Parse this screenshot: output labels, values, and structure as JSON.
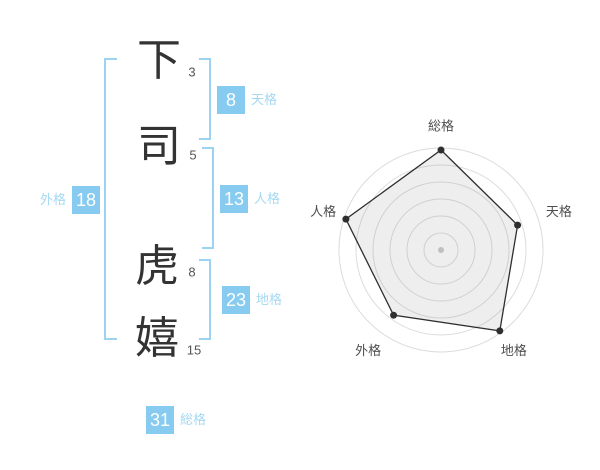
{
  "name": {
    "characters": [
      {
        "char": "下",
        "strokes": "3"
      },
      {
        "char": "司",
        "strokes": "5"
      },
      {
        "char": "虎",
        "strokes": "8"
      },
      {
        "char": "嬉",
        "strokes": "15"
      }
    ]
  },
  "grades": {
    "tenkaku": {
      "value": "8",
      "label": "天格"
    },
    "jinkaku": {
      "value": "13",
      "label": "人格"
    },
    "chikaku": {
      "value": "23",
      "label": "地格"
    },
    "gaikaku": {
      "value": "18",
      "label": "外格"
    },
    "soukaku": {
      "value": "31",
      "label": "総格"
    }
  },
  "colors": {
    "badge_blue": "#87cbf0",
    "label_blue": "#a5d8f2",
    "bracket_blue": "#9cd3f2",
    "char_dark": "#333333",
    "stroke_count_gray": "#555555",
    "radar_label": "#4e4e4e",
    "ring_gray": "#dcdcdc",
    "polygon_stroke": "#2f2f2f",
    "polygon_fill": "rgba(140,140,140,0.15)",
    "center_dot": "#c8c8c8"
  },
  "chart_data": {
    "type": "radar",
    "axes": [
      "総格",
      "天格",
      "地格",
      "外格",
      "人格"
    ],
    "values": [
      98,
      79,
      98,
      79,
      98
    ],
    "max": 100,
    "rings": 6,
    "grid": "circular-on",
    "start_axis": "top",
    "direction": "clockwise",
    "legend": "none",
    "title": ""
  }
}
